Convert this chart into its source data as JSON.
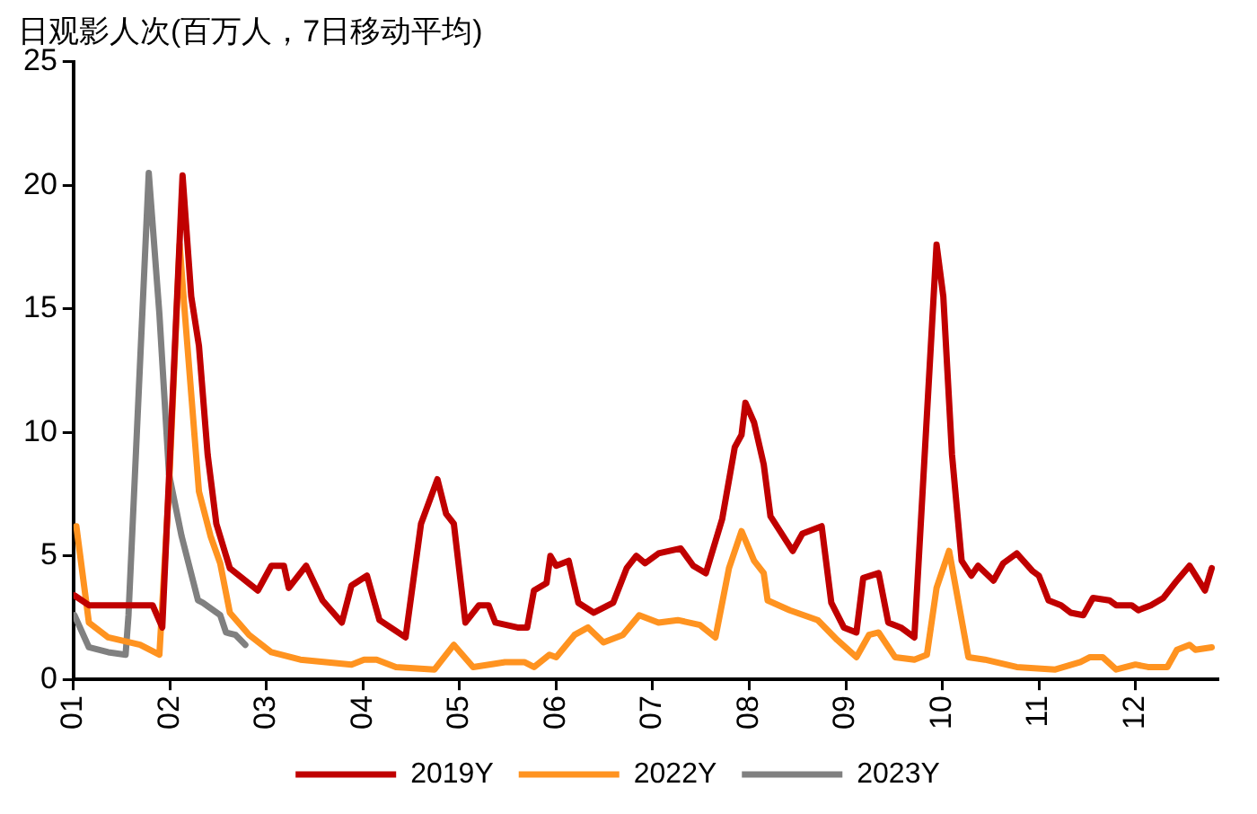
{
  "chart_data": {
    "type": "line",
    "title": "日观影人次(百万人，7日移动平均)",
    "xlim": [
      1,
      12.85
    ],
    "xticks": [
      {
        "value": 1,
        "label": "01"
      },
      {
        "value": 2,
        "label": "02"
      },
      {
        "value": 3,
        "label": "03"
      },
      {
        "value": 4,
        "label": "04"
      },
      {
        "value": 5,
        "label": "05"
      },
      {
        "value": 6,
        "label": "06"
      },
      {
        "value": 7,
        "label": "07"
      },
      {
        "value": 8,
        "label": "08"
      },
      {
        "value": 9,
        "label": "09"
      },
      {
        "value": 10,
        "label": "10"
      },
      {
        "value": 11,
        "label": "11"
      },
      {
        "value": 12,
        "label": "12"
      }
    ],
    "ylim": [
      0,
      25
    ],
    "yticks": [
      0,
      5,
      10,
      15,
      20,
      25
    ],
    "grid": false,
    "legend": "bottom",
    "marker": "none",
    "line_style": "solid",
    "series": [
      {
        "name": "2019Y",
        "color": "#c00000",
        "x": [
          1.01,
          1.16,
          1.56,
          1.82,
          1.92,
          2.13,
          2.22,
          2.3,
          2.39,
          2.48,
          2.62,
          2.91,
          3.05,
          3.18,
          3.23,
          3.41,
          3.58,
          3.78,
          3.88,
          4.04,
          4.17,
          4.44,
          4.6,
          4.77,
          4.86,
          4.94,
          5.06,
          5.2,
          5.3,
          5.37,
          5.6,
          5.7,
          5.77,
          5.9,
          5.94,
          6.0,
          6.13,
          6.23,
          6.39,
          6.59,
          6.73,
          6.83,
          6.92,
          7.06,
          7.29,
          7.42,
          7.55,
          7.72,
          7.85,
          7.92,
          7.96,
          8.05,
          8.15,
          8.22,
          8.45,
          8.55,
          8.75,
          8.85,
          8.98,
          9.11,
          9.18,
          9.34,
          9.44,
          9.57,
          9.71,
          9.94,
          10.01,
          10.1,
          10.2,
          10.3,
          10.37,
          10.53,
          10.63,
          10.77,
          10.93,
          11.0,
          11.1,
          11.23,
          11.33,
          11.46,
          11.56,
          11.73,
          11.8,
          11.96,
          12.03,
          12.16,
          12.29,
          12.43,
          12.56,
          12.72,
          12.79
        ],
        "values": [
          3.4,
          3.0,
          3.0,
          3.0,
          2.1,
          20.4,
          15.5,
          13.5,
          9.1,
          6.3,
          4.5,
          3.6,
          4.6,
          4.6,
          3.7,
          4.6,
          3.2,
          2.3,
          3.8,
          4.2,
          2.4,
          1.7,
          6.3,
          8.1,
          6.7,
          6.3,
          2.3,
          3.0,
          3.0,
          2.3,
          2.1,
          2.1,
          3.6,
          3.9,
          5.0,
          4.6,
          4.8,
          3.1,
          2.7,
          3.1,
          4.5,
          5.0,
          4.7,
          5.1,
          5.3,
          4.6,
          4.3,
          6.5,
          9.4,
          9.9,
          11.2,
          10.4,
          8.7,
          6.6,
          5.2,
          5.9,
          6.2,
          3.1,
          2.1,
          1.9,
          4.1,
          4.3,
          2.3,
          2.1,
          1.7,
          17.6,
          15.5,
          9.1,
          4.8,
          4.2,
          4.6,
          4.0,
          4.7,
          5.1,
          4.4,
          4.2,
          3.2,
          3.0,
          2.7,
          2.6,
          3.3,
          3.2,
          3.0,
          3.0,
          2.8,
          3.0,
          3.3,
          4.0,
          4.6,
          3.6,
          4.5
        ]
      },
      {
        "name": "2022Y",
        "color": "#ff9320",
        "x": [
          1.03,
          1.16,
          1.36,
          1.69,
          1.89,
          1.99,
          2.1,
          2.15,
          2.3,
          2.42,
          2.52,
          2.62,
          2.82,
          3.05,
          3.35,
          3.88,
          4.01,
          4.14,
          4.34,
          4.74,
          4.94,
          5.14,
          5.47,
          5.67,
          5.77,
          5.93,
          6.0,
          6.19,
          6.33,
          6.49,
          6.69,
          6.86,
          7.06,
          7.26,
          7.49,
          7.65,
          7.79,
          7.92,
          8.05,
          8.15,
          8.19,
          8.42,
          8.71,
          8.91,
          9.11,
          9.24,
          9.34,
          9.51,
          9.71,
          9.84,
          9.94,
          10.07,
          10.27,
          10.44,
          10.77,
          11.17,
          11.43,
          11.53,
          11.66,
          11.8,
          12.0,
          12.13,
          12.33,
          12.43,
          12.56,
          12.62,
          12.79
        ],
        "values": [
          6.2,
          2.3,
          1.7,
          1.4,
          1.0,
          7.8,
          17.6,
          15.0,
          7.6,
          5.8,
          4.7,
          2.7,
          1.8,
          1.1,
          0.8,
          0.6,
          0.8,
          0.8,
          0.5,
          0.4,
          1.4,
          0.5,
          0.7,
          0.7,
          0.5,
          1.0,
          0.9,
          1.8,
          2.1,
          1.5,
          1.8,
          2.6,
          2.3,
          2.4,
          2.2,
          1.7,
          4.5,
          6.0,
          4.8,
          4.3,
          3.2,
          2.8,
          2.4,
          1.6,
          0.9,
          1.8,
          1.9,
          0.9,
          0.8,
          1.0,
          3.7,
          5.2,
          0.9,
          0.8,
          0.5,
          0.4,
          0.7,
          0.9,
          0.9,
          0.4,
          0.6,
          0.5,
          0.5,
          1.2,
          1.4,
          1.2,
          1.3
        ]
      },
      {
        "name": "2023Y",
        "color": "#808080",
        "x": [
          1.01,
          1.16,
          1.36,
          1.54,
          1.57,
          1.78,
          1.89,
          1.99,
          2.12,
          2.29,
          2.34,
          2.52,
          2.58,
          2.68,
          2.78
        ],
        "values": [
          2.6,
          1.3,
          1.1,
          1.0,
          2.6,
          20.5,
          14.8,
          8.3,
          5.8,
          3.2,
          3.1,
          2.6,
          1.9,
          1.8,
          1.4
        ]
      }
    ]
  }
}
